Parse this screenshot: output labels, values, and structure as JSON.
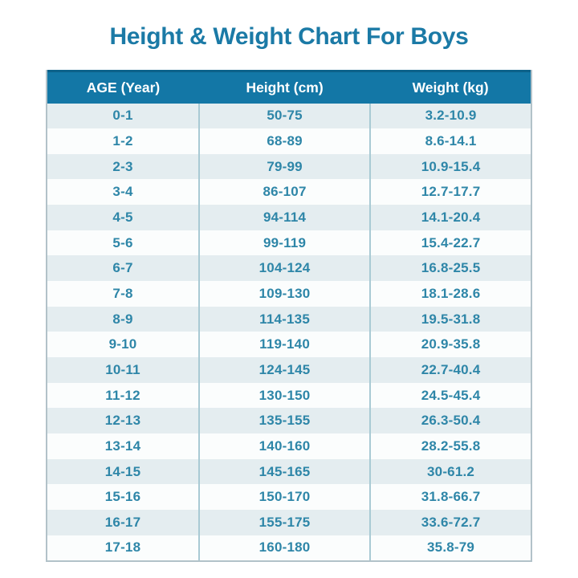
{
  "page": {
    "title": "Height & Weight Chart For Boys"
  },
  "colors": {
    "title_text": "#1b7aa6",
    "header_bg": "#1377a6",
    "header_text": "#ffffff",
    "header_top_line": "#0c6189",
    "body_text": "#2e86a8",
    "row_alt": "#e4edf0",
    "row_base": "#fbfdfd",
    "divider": "#a9cad4",
    "outer_border": "#b2c2c9"
  },
  "chart_data": {
    "type": "table",
    "title": "Height & Weight Chart For Boys",
    "columns": [
      "AGE (Year)",
      "Height (cm)",
      "Weight (kg)"
    ],
    "rows": [
      [
        "0-1",
        "50-75",
        "3.2-10.9"
      ],
      [
        "1-2",
        "68-89",
        "8.6-14.1"
      ],
      [
        "2-3",
        "79-99",
        "10.9-15.4"
      ],
      [
        "3-4",
        "86-107",
        "12.7-17.7"
      ],
      [
        "4-5",
        "94-114",
        "14.1-20.4"
      ],
      [
        "5-6",
        "99-119",
        "15.4-22.7"
      ],
      [
        "6-7",
        "104-124",
        "16.8-25.5"
      ],
      [
        "7-8",
        "109-130",
        "18.1-28.6"
      ],
      [
        "8-9",
        "114-135",
        "19.5-31.8"
      ],
      [
        "9-10",
        "119-140",
        "20.9-35.8"
      ],
      [
        "10-11",
        "124-145",
        "22.7-40.4"
      ],
      [
        "11-12",
        "130-150",
        "24.5-45.4"
      ],
      [
        "12-13",
        "135-155",
        "26.3-50.4"
      ],
      [
        "13-14",
        "140-160",
        "28.2-55.8"
      ],
      [
        "14-15",
        "145-165",
        "30-61.2"
      ],
      [
        "15-16",
        "150-170",
        "31.8-66.7"
      ],
      [
        "16-17",
        "155-175",
        "33.6-72.7"
      ],
      [
        "17-18",
        "160-180",
        "35.8-79"
      ]
    ],
    "layout": {
      "striped_rows": true,
      "header_position": "top",
      "column_dividers": true
    }
  }
}
